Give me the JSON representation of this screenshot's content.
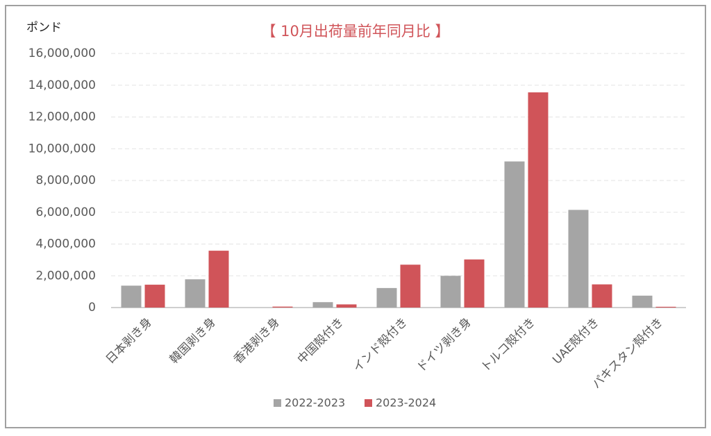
{
  "chart_data": {
    "type": "bar",
    "title": "【 10月出荷量前年同月比 】",
    "y_label": "ポンド",
    "categories": [
      "日本剥き身",
      "韓国剥き身",
      "香港剥き身",
      "中国殻付き",
      "インド殻付き",
      "ドイツ剥き身",
      "トルコ殻付き",
      "UAE殻付き",
      "パキスタン殻付き"
    ],
    "series": [
      {
        "name": "2022-2023",
        "color": "#a5a5a5",
        "values": [
          1380000,
          1780000,
          0,
          340000,
          1230000,
          2000000,
          9200000,
          6150000,
          750000
        ]
      },
      {
        "name": "2023-2024",
        "color": "#d05459",
        "values": [
          1440000,
          3580000,
          60000,
          200000,
          2700000,
          3030000,
          13550000,
          1460000,
          50000
        ]
      }
    ],
    "ylim": [
      0,
      16000000
    ],
    "yticks": [
      0,
      {
        "value": 2000000,
        "label": "2,000,000"
      },
      {
        "value": 4000000,
        "label": "4,000,000"
      },
      {
        "value": 6000000,
        "label": "6,000,000"
      },
      {
        "value": 8000000,
        "label": "8,000,000"
      },
      {
        "value": 10000000,
        "label": "10,000,000"
      },
      {
        "value": 12000000,
        "label": "12,000,000"
      },
      {
        "value": 14000000,
        "label": "14,000,000"
      },
      {
        "value": 16000000,
        "label": "16,000,000"
      }
    ],
    "grid": true,
    "legend": "bottom"
  }
}
